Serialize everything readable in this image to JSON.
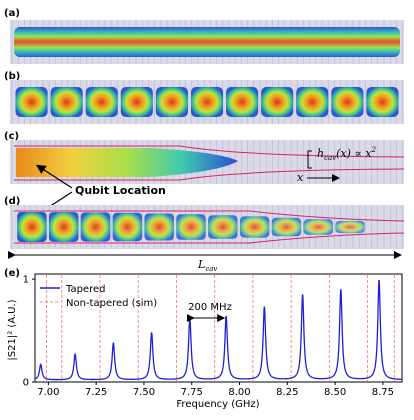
{
  "panels": [
    {
      "label": "(a)",
      "style": "continuous"
    },
    {
      "label": "(b)",
      "style": "cells"
    },
    {
      "label": "(c)",
      "style": "tapered-single"
    },
    {
      "label": "(d)",
      "style": "tapered-cells"
    }
  ],
  "annotations": {
    "h_cav_label": "h",
    "h_cav_sub": "cav",
    "h_cav_formula": "(x) ∝ x",
    "h_cav_exponent": "2",
    "x_label": "x",
    "qubit_location": "Qubit Location",
    "l_cav_label": "L",
    "l_cav_sub": "cav",
    "spacing_label": "200 MHz"
  },
  "colors": {
    "blue_line": "#1f1fd6",
    "red_dashed": "#f08080",
    "cavity_outline": "#d6245a",
    "grid_fill": "#d9d9ea"
  },
  "chart_data": {
    "panel_label": "(e)",
    "type": "line",
    "xlabel": "Frequency (GHz)",
    "ylabel": "|S21|² (A.U.)",
    "xlim": [
      6.93,
      8.85
    ],
    "ylim": [
      0,
      1.05
    ],
    "xticks": [
      "7.00",
      "7.25",
      "7.50",
      "7.75",
      "8.00",
      "8.25",
      "8.50",
      "8.75"
    ],
    "xtick_values": [
      7.0,
      7.25,
      7.5,
      7.75,
      8.0,
      8.25,
      8.5,
      8.75
    ],
    "yticks": [
      "0",
      "1"
    ],
    "ytick_values": [
      0,
      1
    ],
    "legend": [
      "Tapered",
      "Non-tapered (sim)"
    ],
    "series": [
      {
        "name": "Tapered",
        "peaks": [
          {
            "f": 6.96,
            "a": 0.15
          },
          {
            "f": 7.14,
            "a": 0.25
          },
          {
            "f": 7.34,
            "a": 0.36
          },
          {
            "f": 7.54,
            "a": 0.46
          },
          {
            "f": 7.74,
            "a": 0.6
          },
          {
            "f": 7.93,
            "a": 0.62
          },
          {
            "f": 8.13,
            "a": 0.71
          },
          {
            "f": 8.33,
            "a": 0.83
          },
          {
            "f": 8.53,
            "a": 0.88
          },
          {
            "f": 8.73,
            "a": 0.97
          }
        ],
        "linewidth_ghz": 0.008,
        "baseline": 0.02
      },
      {
        "name": "Non-tapered (sim)",
        "lines": [
          6.99,
          7.07,
          7.27,
          7.47,
          7.67,
          7.87,
          8.07,
          8.27,
          8.47,
          8.67,
          8.81
        ]
      }
    ]
  }
}
